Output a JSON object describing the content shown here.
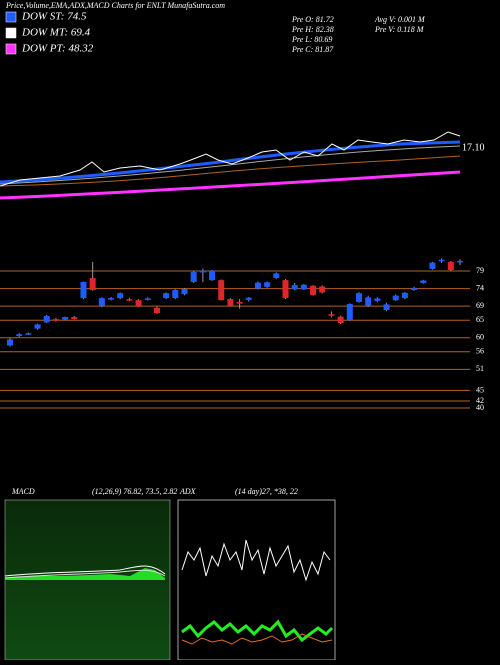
{
  "header": {
    "title": "Price,Volume,EMA,ADX,MACD Charts for ENLT MunafaSutra.com"
  },
  "legend": [
    {
      "label": "DOW ST: 74.5",
      "color": "#1f5cff"
    },
    {
      "label": "DOW MT: 69.4",
      "color": "#ffffff"
    },
    {
      "label": "DOW PT: 48.32",
      "color": "#ff33ff"
    }
  ],
  "stats": {
    "left": [
      "Pre   O: 81.72",
      "Pre   H: 82.38",
      "Pre   L: 80.69",
      "Pre   C: 81.87"
    ],
    "right": [
      "Avg V: 0.001 M",
      "Pre   V: 0.118  M"
    ]
  },
  "ema_label": "17.10",
  "chart_data": {
    "type": "candlestick",
    "open": [
      57.8,
      60.5,
      61.0,
      62.6,
      64.4,
      65.3,
      65.2,
      65.9,
      71.3,
      77.0,
      69.0,
      71.0,
      71.3,
      71.0,
      70.7,
      70.9,
      68.5,
      71.3,
      71.3,
      72.4,
      75.9,
      78.6,
      76.4,
      76.4,
      71.0,
      70.2,
      70.8,
      74.0,
      74.5,
      77.0,
      76.4,
      73.8,
      73.8,
      74.8,
      74.6,
      66.7,
      66.0,
      65.0,
      70.2,
      69.2,
      70.5,
      67.9,
      70.7,
      71.3,
      73.6,
      75.6,
      79.6,
      82.0,
      81.6,
      81.72
    ],
    "high": [
      59.9,
      61.3,
      61.5,
      64.0,
      66.5,
      65.6,
      66.0,
      66.2,
      76.0,
      81.6,
      71.5,
      71.6,
      72.9,
      71.4,
      71.0,
      71.5,
      68.9,
      72.9,
      73.8,
      74.2,
      79.0,
      79.7,
      79.3,
      76.6,
      71.3,
      71.0,
      71.6,
      76.0,
      76.0,
      78.6,
      76.7,
      75.6,
      75.3,
      75.0,
      74.9,
      67.5,
      66.3,
      69.8,
      73.0,
      72.0,
      71.5,
      70.0,
      72.3,
      73.0,
      74.5,
      76.5,
      81.6,
      82.6,
      81.9,
      82.38
    ],
    "low": [
      57.5,
      60.2,
      60.8,
      62.3,
      64.2,
      64.6,
      65.0,
      65.2,
      71.0,
      73.4,
      68.7,
      70.6,
      71.0,
      70.4,
      68.8,
      70.6,
      66.8,
      71.0,
      71.0,
      72.1,
      75.6,
      75.8,
      76.2,
      70.6,
      69.0,
      68.3,
      70.3,
      73.8,
      74.2,
      76.8,
      71.0,
      73.5,
      73.6,
      72.0,
      72.6,
      65.8,
      63.9,
      64.8,
      70.0,
      68.8,
      70.2,
      67.6,
      70.5,
      71.0,
      73.4,
      75.4,
      79.4,
      81.3,
      79.0,
      80.69
    ],
    "close": [
      59.5,
      61.0,
      61.3,
      63.8,
      66.2,
      64.9,
      65.9,
      65.3,
      75.9,
      73.6,
      71.3,
      71.3,
      72.7,
      70.8,
      69.0,
      71.2,
      67.0,
      72.7,
      73.6,
      73.9,
      78.7,
      79.1,
      79.1,
      70.7,
      69.2,
      69.7,
      71.4,
      75.7,
      75.8,
      78.3,
      71.3,
      75.0,
      75.1,
      72.2,
      72.9,
      66.5,
      64.2,
      69.6,
      72.7,
      71.5,
      71.2,
      69.5,
      72.0,
      72.8,
      74.2,
      76.3,
      81.4,
      82.2,
      79.3,
      81.87
    ],
    "up_color": "#1f5cff",
    "down_color": "#e0262b",
    "ylim": [
      38,
      83
    ],
    "yticks": [
      79,
      74,
      69,
      65,
      60,
      56,
      51,
      45,
      42,
      40
    ],
    "grid": true,
    "grid_color": "#b8621b"
  },
  "macd": {
    "title": "MACD",
    "params": "(12,26,9) 76.82, 73.5, 2.82"
  },
  "adx": {
    "title": "ADX",
    "params": "(14 day)27, *38, 22"
  }
}
